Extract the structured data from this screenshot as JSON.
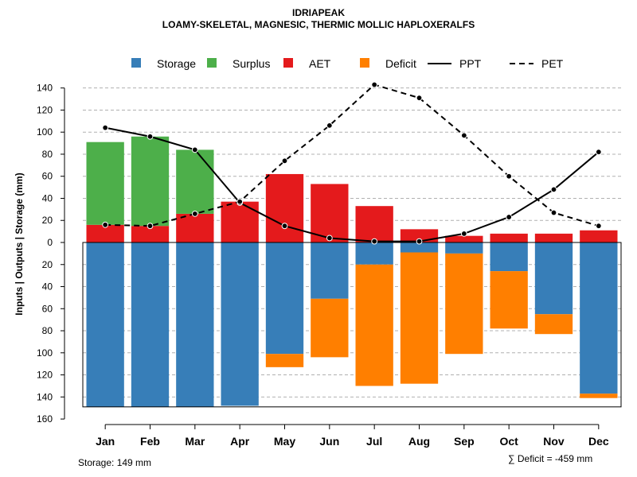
{
  "chart_data": {
    "type": "bar",
    "title": "IDRIAPEAK",
    "subtitle": "LOAMY-SKELETAL, MAGNESIC, THERMIC MOLLIC HAPLOXERALFS",
    "ylabel": "Inputs | Outputs | Storage    (mm)",
    "xlabel": "",
    "ylim": [
      -160,
      150
    ],
    "y_ticks": [
      140,
      120,
      100,
      80,
      60,
      40,
      20,
      0,
      -20,
      -40,
      -60,
      -80,
      -100,
      -120,
      -140,
      -160
    ],
    "y_tick_labels": [
      "140",
      "120",
      "100",
      "80",
      "60",
      "40",
      "20",
      "0",
      "20",
      "40",
      "60",
      "80",
      "100",
      "120",
      "140",
      "160"
    ],
    "categories": [
      "Jan",
      "Feb",
      "Mar",
      "Apr",
      "May",
      "Jun",
      "Jul",
      "Aug",
      "Sep",
      "Oct",
      "Nov",
      "Dec"
    ],
    "grid": true,
    "legend_position": "top",
    "legend": [
      {
        "name": "Storage",
        "kind": "box",
        "color": "#377eb8"
      },
      {
        "name": "Surplus",
        "kind": "box",
        "color": "#4daf4a"
      },
      {
        "name": "AET",
        "kind": "box",
        "color": "#e41a1c"
      },
      {
        "name": "Deficit",
        "kind": "box",
        "color": "#ff7f00"
      },
      {
        "name": "PPT",
        "kind": "solid-line",
        "color": "#000000"
      },
      {
        "name": "PET",
        "kind": "dashed-line",
        "color": "#000000"
      }
    ],
    "series": [
      {
        "name": "AET",
        "color": "#e41a1c",
        "values": [
          16,
          15,
          26,
          37,
          62,
          53,
          33,
          12,
          6,
          8,
          8,
          11
        ]
      },
      {
        "name": "Surplus",
        "color": "#4daf4a",
        "values": [
          75,
          81,
          58,
          0,
          0,
          0,
          0,
          0,
          0,
          0,
          0,
          0
        ]
      },
      {
        "name": "Storage",
        "color": "#377eb8",
        "values": [
          149,
          149,
          149,
          148,
          101,
          51,
          20,
          9,
          10,
          26,
          65,
          137
        ]
      },
      {
        "name": "Deficit",
        "color": "#ff7f00",
        "values": [
          0,
          0,
          0,
          0,
          12,
          53,
          110,
          119,
          91,
          52,
          18,
          4
        ]
      },
      {
        "name": "PPT",
        "color": "#000000",
        "line": "solid",
        "values": [
          104,
          96,
          84,
          36,
          15,
          4,
          1,
          1,
          8,
          23,
          48,
          82
        ]
      },
      {
        "name": "PET",
        "color": "#000000",
        "line": "dashed",
        "values": [
          16,
          15,
          26,
          37,
          74,
          106,
          143,
          131,
          97,
          60,
          27,
          15
        ]
      }
    ],
    "storage_capacity": 149
  },
  "footer": {
    "storage_label": "Storage: 149 mm",
    "deficit_label": "∑ Deficit = -459 mm"
  }
}
